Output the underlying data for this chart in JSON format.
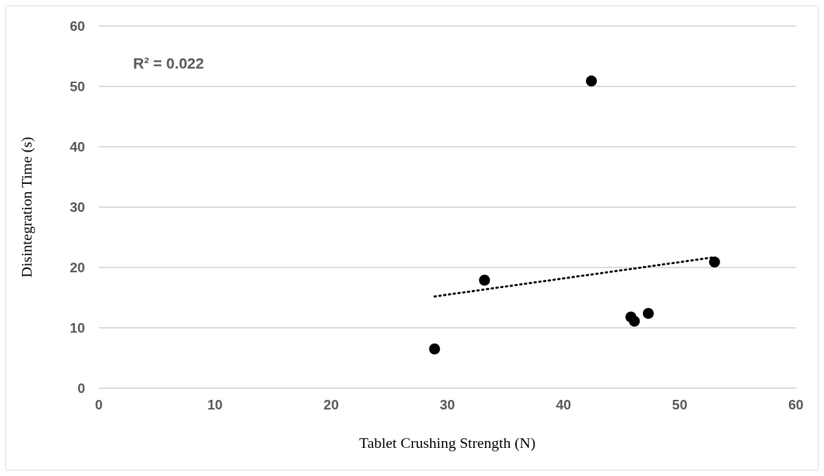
{
  "chart_data": {
    "type": "scatter",
    "xlabel": "Tablet Crushing Strength (N)",
    "ylabel": "Disintegration Time (s)",
    "annotations": [
      "R² = 0.022"
    ],
    "xlim": [
      0,
      60
    ],
    "xticks": [
      0,
      10,
      20,
      30,
      40,
      50,
      60
    ],
    "ylim": [
      0,
      60
    ],
    "yticks": [
      0,
      10,
      20,
      30,
      40,
      50,
      60
    ],
    "grid": "y",
    "series": [
      {
        "color": "#000000",
        "marker": "circle",
        "x": [
          28.9,
          33.2,
          42.4,
          45.8,
          46.1,
          47.3,
          53.0
        ],
        "values": [
          6.5,
          17.9,
          50.9,
          11.8,
          11.1,
          12.4,
          20.9
        ]
      },
      {
        "type": "line",
        "color": "#000000",
        "line_style": "dotted",
        "marker": "none",
        "x": [
          28.9,
          53.0
        ],
        "values": [
          15.2,
          21.7
        ]
      }
    ]
  }
}
